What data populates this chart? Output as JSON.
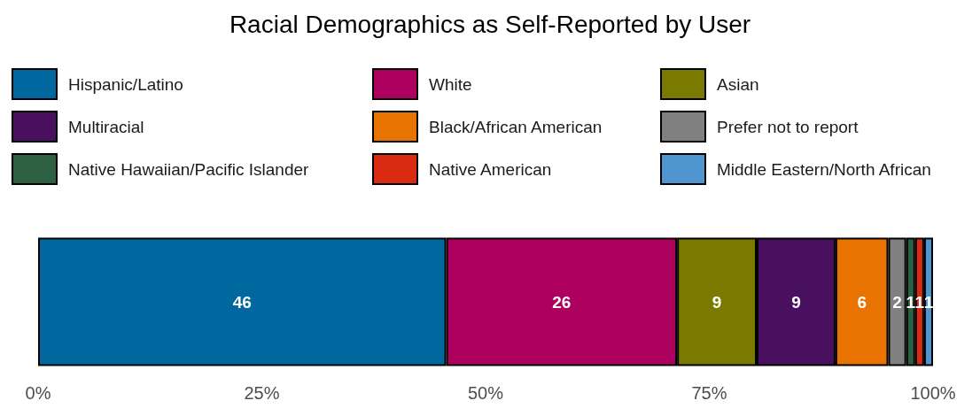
{
  "chart_data": {
    "type": "bar",
    "title": "Racial Demographics as Self-Reported by User",
    "orientation": "horizontal",
    "stacked": true,
    "categories": [
      null
    ],
    "series": [
      {
        "name": "Hispanic/Latino",
        "color": "#00689f",
        "values": [
          45.6
        ],
        "value_labels": [
          "46"
        ]
      },
      {
        "name": "White",
        "color": "#ad005f",
        "values": [
          25.8
        ],
        "value_labels": [
          "26"
        ]
      },
      {
        "name": "Asian",
        "color": "#7a7a00",
        "values": [
          8.9
        ],
        "value_labels": [
          "9"
        ]
      },
      {
        "name": "Multiracial",
        "color": "#4a1060",
        "values": [
          8.8
        ],
        "value_labels": [
          "9"
        ]
      },
      {
        "name": "Black/African American",
        "color": "#e87300",
        "values": [
          5.9
        ],
        "value_labels": [
          "6"
        ]
      },
      {
        "name": "Prefer not to report",
        "color": "#808080",
        "values": [
          2.0
        ],
        "value_labels": [
          "2"
        ]
      },
      {
        "name": "Native Hawaiian/Pacific Islander",
        "color": "#2d6040",
        "values": [
          1.0
        ],
        "value_labels": [
          "1"
        ]
      },
      {
        "name": "Native American",
        "color": "#d92b12",
        "values": [
          1.0
        ],
        "value_labels": [
          "1"
        ]
      },
      {
        "name": "Middle Eastern/North African",
        "color": "#4f95d0",
        "values": [
          1.0
        ],
        "value_labels": [
          "1"
        ]
      }
    ],
    "xlim": [
      0,
      100
    ],
    "xticks": [
      {
        "value": 0,
        "label": "0%"
      },
      {
        "value": 25,
        "label": "25%"
      },
      {
        "value": 50,
        "label": "50%"
      },
      {
        "value": 75,
        "label": "75%"
      },
      {
        "value": 100,
        "label": "100%"
      }
    ],
    "grid": false,
    "legend": "top"
  }
}
